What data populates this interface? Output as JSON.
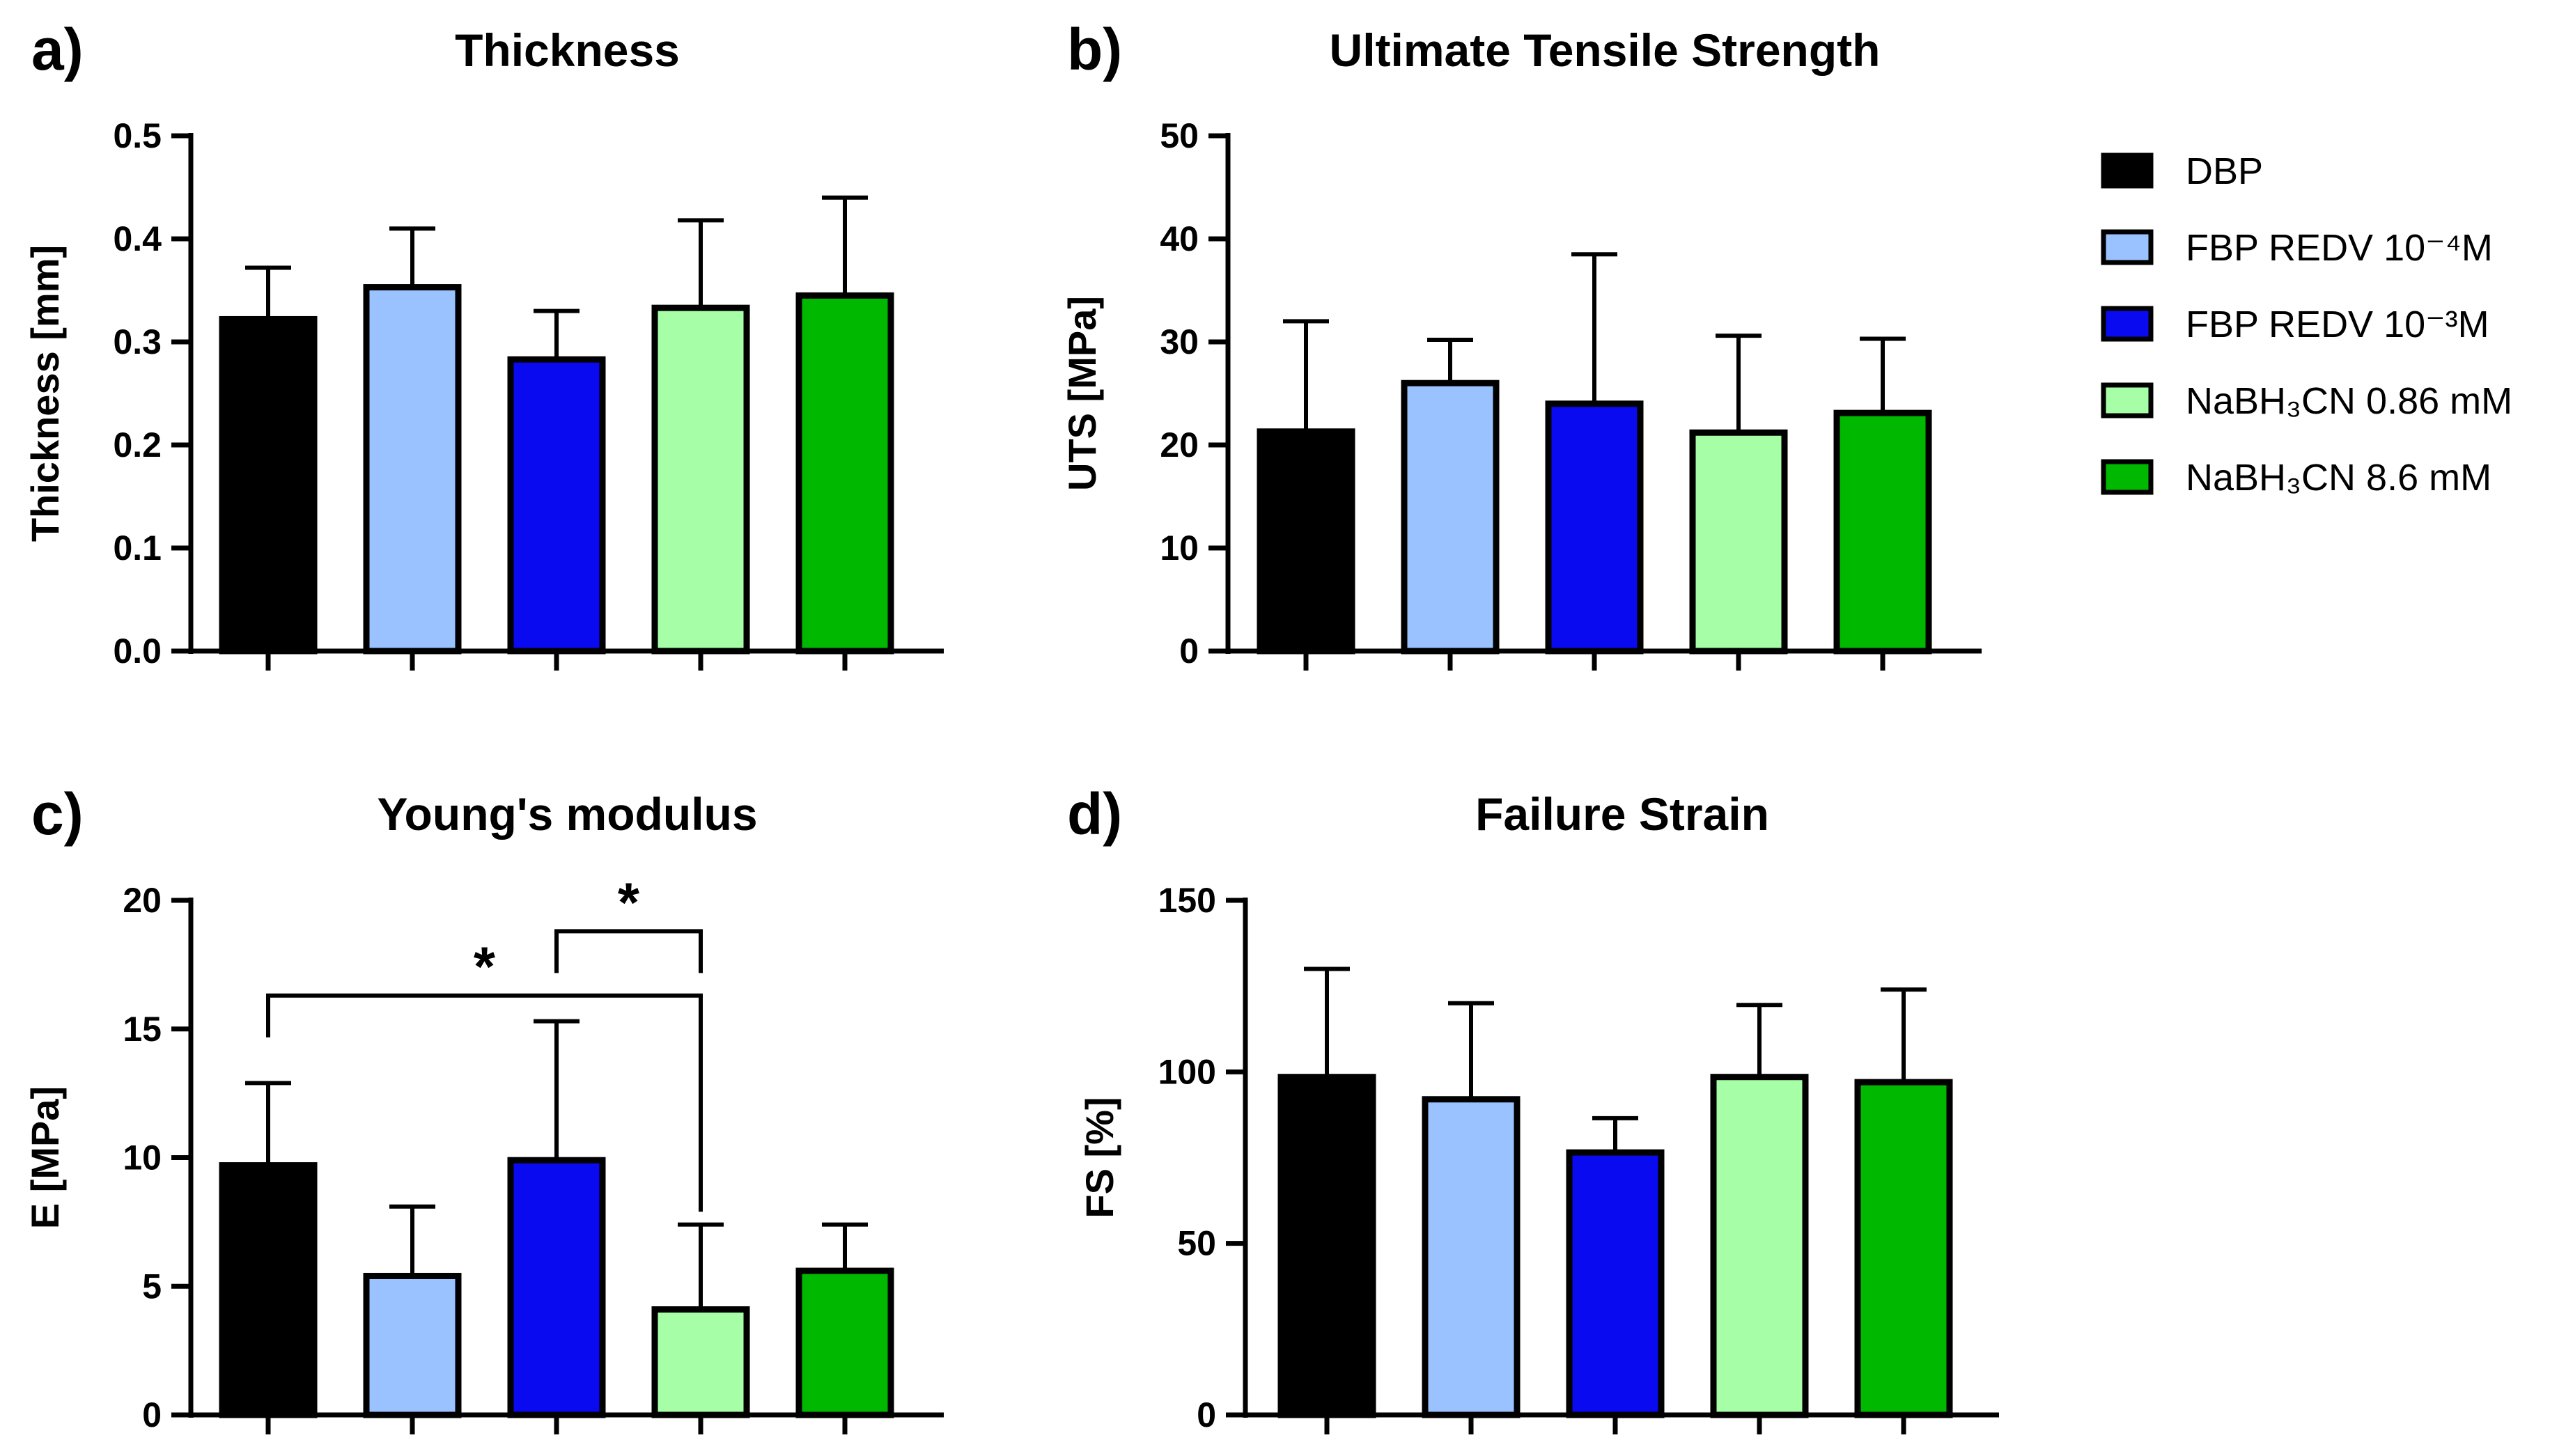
{
  "legend": {
    "items": [
      {
        "label": "DBP",
        "color": "#000000"
      },
      {
        "label": "FBP REDV 10⁻⁴M",
        "color": "#99C2FF"
      },
      {
        "label": "FBP REDV 10⁻³M",
        "color": "#0A0AF0"
      },
      {
        "label": "NaBH₃CN 0.86 mM",
        "color": "#A6FFA6"
      },
      {
        "label": "NaBH₃CN 8.6 mM",
        "color": "#00B800"
      }
    ]
  },
  "chart_data": [
    {
      "type": "bar",
      "panel": "a)",
      "title": "Thickness",
      "ylabel": "Thickness [mm]",
      "xlabel": "",
      "ylim": [
        0,
        0.5
      ],
      "yticks": [
        "0.0",
        "0.1",
        "0.2",
        "0.3",
        "0.4",
        "0.5"
      ],
      "categories": [
        "DBP",
        "FBP REDV 10⁻⁴M",
        "FBP REDV 10⁻³M",
        "NaBH₃CN 0.86 mM",
        "NaBH₃CN 8.6 mM"
      ],
      "values": [
        0.322,
        0.353,
        0.283,
        0.333,
        0.345
      ],
      "error_upper": [
        0.372,
        0.41,
        0.33,
        0.418,
        0.44
      ],
      "significance": []
    },
    {
      "type": "bar",
      "panel": "b)",
      "title": "Ultimate Tensile Strength",
      "ylabel": "UTS [MPa]",
      "xlabel": "",
      "ylim": [
        0,
        50
      ],
      "yticks": [
        "0",
        "10",
        "20",
        "30",
        "40",
        "50"
      ],
      "categories": [
        "DBP",
        "FBP REDV 10⁻⁴M",
        "FBP REDV 10⁻³M",
        "NaBH₃CN 0.86 mM",
        "NaBH₃CN 8.6 mM"
      ],
      "values": [
        21.3,
        26.0,
        24.0,
        21.2,
        23.1
      ],
      "error_upper": [
        32.0,
        30.2,
        38.5,
        30.6,
        30.3
      ],
      "significance": []
    },
    {
      "type": "bar",
      "panel": "c)",
      "title": "Young's modulus",
      "ylabel": "E [MPa]",
      "xlabel": "",
      "ylim": [
        0,
        20
      ],
      "yticks": [
        "0",
        "5",
        "10",
        "15",
        "20"
      ],
      "categories": [
        "DBP",
        "FBP REDV 10⁻⁴M",
        "FBP REDV 10⁻³M",
        "NaBH₃CN 0.86 mM",
        "NaBH₃CN 8.6 mM"
      ],
      "values": [
        9.7,
        5.4,
        9.9,
        4.1,
        5.6
      ],
      "error_upper": [
        12.9,
        8.1,
        15.3,
        7.4,
        7.4
      ],
      "significance": [
        {
          "from": 0,
          "to": 3,
          "bracket_y": 16.3,
          "label": "*"
        },
        {
          "from": 2,
          "to": 3,
          "bracket_y": 18.8,
          "label": "*"
        }
      ]
    },
    {
      "type": "bar",
      "panel": "d)",
      "title": "Failure Strain",
      "ylabel": "FS [%]",
      "xlabel": "",
      "ylim": [
        0,
        150
      ],
      "yticks": [
        "0",
        "50",
        "100",
        "150"
      ],
      "categories": [
        "DBP",
        "FBP REDV 10⁻⁴M",
        "FBP REDV 10⁻³M",
        "NaBH₃CN 0.86 mM",
        "NaBH₃CN 8.6 mM"
      ],
      "values": [
        98.5,
        92.0,
        76.5,
        98.5,
        97.0
      ],
      "error_upper": [
        130.0,
        120.0,
        86.5,
        119.5,
        124.0
      ],
      "significance": []
    }
  ]
}
